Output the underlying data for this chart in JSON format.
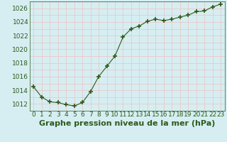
{
  "x": [
    0,
    1,
    2,
    3,
    4,
    5,
    6,
    7,
    8,
    9,
    10,
    11,
    12,
    13,
    14,
    15,
    16,
    17,
    18,
    19,
    20,
    21,
    22,
    23
  ],
  "y": [
    1014.5,
    1013.0,
    1012.3,
    1012.2,
    1011.9,
    1011.7,
    1012.2,
    1013.8,
    1016.0,
    1017.5,
    1019.0,
    1021.8,
    1023.0,
    1023.4,
    1024.1,
    1024.4,
    1024.2,
    1024.4,
    1024.7,
    1025.0,
    1025.5,
    1025.6,
    1026.2,
    1026.6
  ],
  "line_color": "#2d5a1b",
  "marker": "+",
  "marker_size": 5,
  "marker_linewidth": 1.2,
  "bg_color": "#d6eef2",
  "grid_color": "#e8c8c8",
  "xlabel": "Graphe pression niveau de la mer (hPa)",
  "xlabel_color": "#2d5a1b",
  "xlabel_fontsize": 8,
  "tick_color": "#2d5a1b",
  "tick_fontsize": 6.5,
  "ylim": [
    1011,
    1027
  ],
  "xlim": [
    -0.5,
    23.5
  ],
  "yticks": [
    1012,
    1014,
    1016,
    1018,
    1020,
    1022,
    1024,
    1026
  ],
  "xticks": [
    0,
    1,
    2,
    3,
    4,
    5,
    6,
    7,
    8,
    9,
    10,
    11,
    12,
    13,
    14,
    15,
    16,
    17,
    18,
    19,
    20,
    21,
    22,
    23
  ],
  "minor_ytick_interval": 1,
  "minor_xtick_interval": 1
}
